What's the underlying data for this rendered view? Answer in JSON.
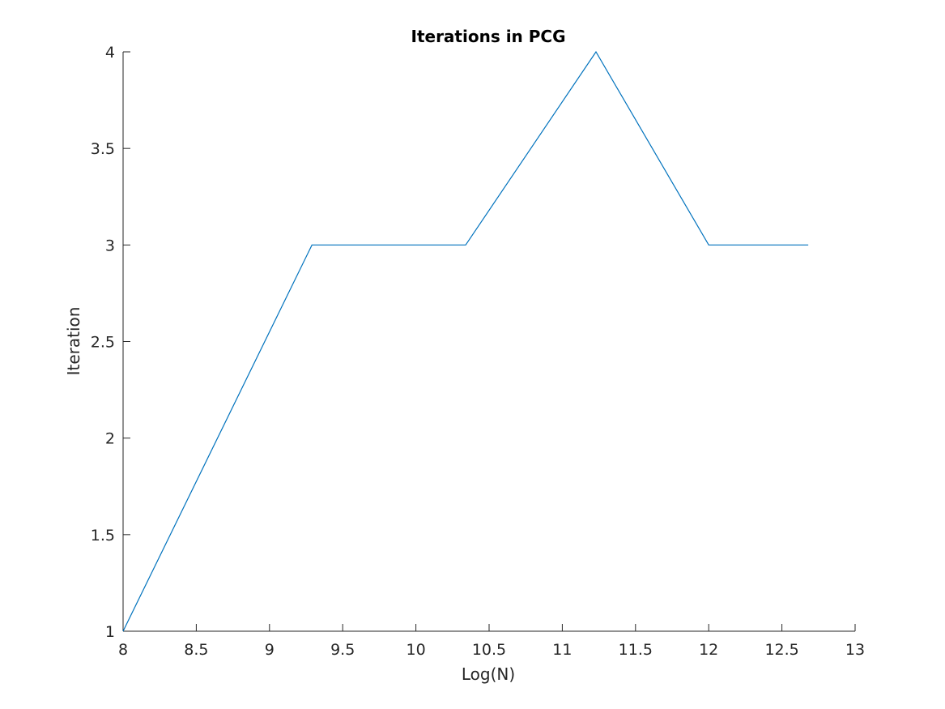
{
  "chart_data": {
    "type": "line",
    "title": "Iterations in PCG",
    "xlabel": "Log(N)",
    "ylabel": "Iteration",
    "xlim": [
      8,
      13
    ],
    "ylim": [
      1,
      4
    ],
    "xticks": [
      8,
      8.5,
      9,
      9.5,
      10,
      10.5,
      11,
      11.5,
      12,
      12.5,
      13
    ],
    "xtick_labels": [
      "8",
      "8.5",
      "9",
      "9.5",
      "10",
      "10.5",
      "11",
      "11.5",
      "12",
      "12.5",
      "13"
    ],
    "yticks": [
      1,
      1.5,
      2,
      2.5,
      3,
      3.5,
      4
    ],
    "ytick_labels": [
      "1",
      "1.5",
      "2",
      "2.5",
      "3",
      "3.5",
      "4"
    ],
    "grid": false,
    "series": [
      {
        "x": [
          8.0,
          9.29,
          10.34,
          11.23,
          12.0,
          12.68
        ],
        "y": [
          1,
          3,
          3,
          4,
          3,
          3
        ],
        "color": "#0072BD"
      }
    ]
  }
}
